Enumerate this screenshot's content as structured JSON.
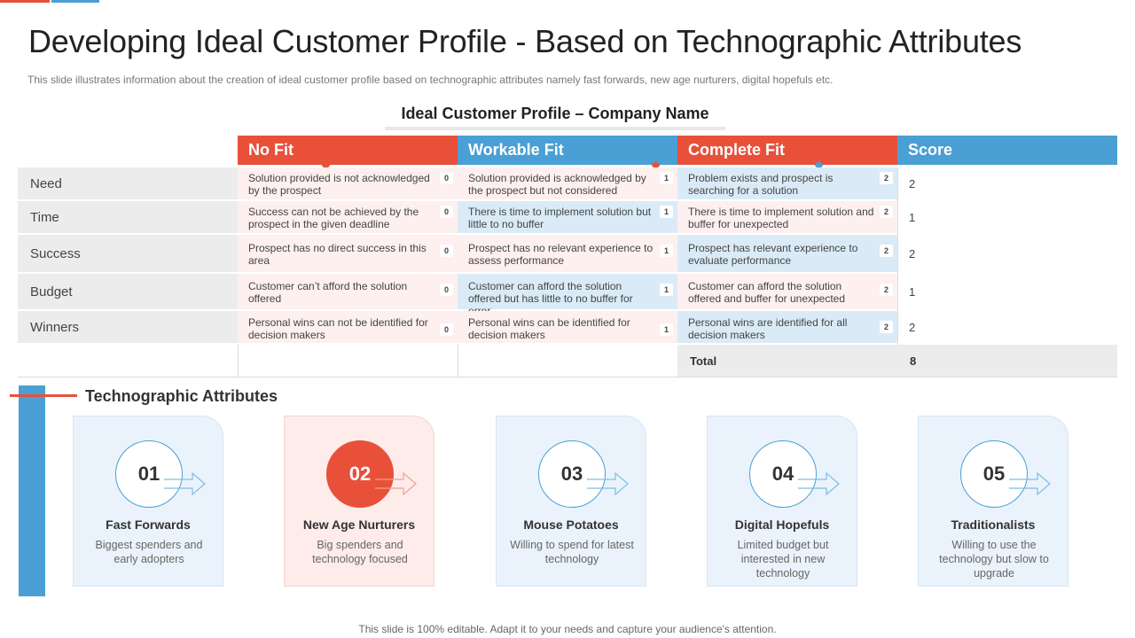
{
  "title": "Developing Ideal Customer Profile - Based on Technographic Attributes",
  "subtitle": "This slide illustrates information about the creation of ideal customer profile based on technographic attributes namely fast forwards,  new age nurturers, digital hopefuls etc.",
  "table": {
    "title": "Ideal Customer Profile – Company Name",
    "headers": {
      "no_fit": "No Fit",
      "workable_fit": "Workable Fit",
      "complete_fit": "Complete Fit",
      "score": "Score"
    },
    "rows": [
      {
        "label": "Need",
        "no_fit": "Solution provided is not acknowledged by the prospect",
        "no_fit_score": "0",
        "workable_fit": "Solution provided is acknowledged by the prospect but not considered",
        "workable_fit_score": "1",
        "complete_fit": "Problem exists and prospect is searching for a solution",
        "complete_fit_score": "2",
        "score": "2"
      },
      {
        "label": "Time",
        "no_fit": "Success can not be achieved by the prospect in the given deadline",
        "no_fit_score": "0",
        "workable_fit": "There is time to implement solution but little to no buffer",
        "workable_fit_score": "1",
        "complete_fit": "There is time to implement solution and buffer for unexpected",
        "complete_fit_score": "2",
        "score": "1"
      },
      {
        "label": "Success",
        "no_fit": "Prospect has no direct success in this area",
        "no_fit_score": "0",
        "workable_fit": "Prospect has no relevant experience to assess performance",
        "workable_fit_score": "1",
        "complete_fit": "Prospect has relevant experience to evaluate performance",
        "complete_fit_score": "2",
        "score": "2"
      },
      {
        "label": "Budget",
        "no_fit": "Customer can’t afford the solution offered",
        "no_fit_score": "0",
        "workable_fit": "Customer can afford the solution offered but has little to no buffer for error",
        "workable_fit_score": "1",
        "complete_fit": "Customer can afford the solution offered and buffer for unexpected",
        "complete_fit_score": "2",
        "score": "1"
      },
      {
        "label": "Winners",
        "no_fit": "Personal wins can not be identified for decision makers",
        "no_fit_score": "0",
        "workable_fit": "Personal wins can be identified for decision makers",
        "workable_fit_score": "1",
        "complete_fit": "Personal wins are identified for all decision makers",
        "complete_fit_score": "2",
        "score": "2"
      }
    ],
    "total_label": "Total",
    "total_value": "8"
  },
  "attributes": {
    "title": "Technographic Attributes",
    "cards": [
      {
        "number": "01",
        "title": "Fast Forwards",
        "desc": "Biggest spenders and early adopters",
        "highlight": false
      },
      {
        "number": "02",
        "title": "New Age Nurturers",
        "desc": "Big spenders and technology focused",
        "highlight": true
      },
      {
        "number": "03",
        "title": "Mouse Potatoes",
        "desc": "Willing to spend for latest technology",
        "highlight": false
      },
      {
        "number": "04",
        "title": "Digital Hopefuls",
        "desc": "Limited budget but interested in new technology",
        "highlight": false
      },
      {
        "number": "05",
        "title": "Traditionalists",
        "desc": "Willing to use the technology but slow to upgrade",
        "highlight": false
      }
    ]
  },
  "footer": "This slide is 100% editable. Adapt it to your needs and capture your audience's attention.",
  "colors": {
    "accent_red": "#e8503a",
    "accent_blue": "#4a9fd4",
    "pink_bg": "#fdf0ef",
    "light_blue_bg": "#daebf7"
  }
}
